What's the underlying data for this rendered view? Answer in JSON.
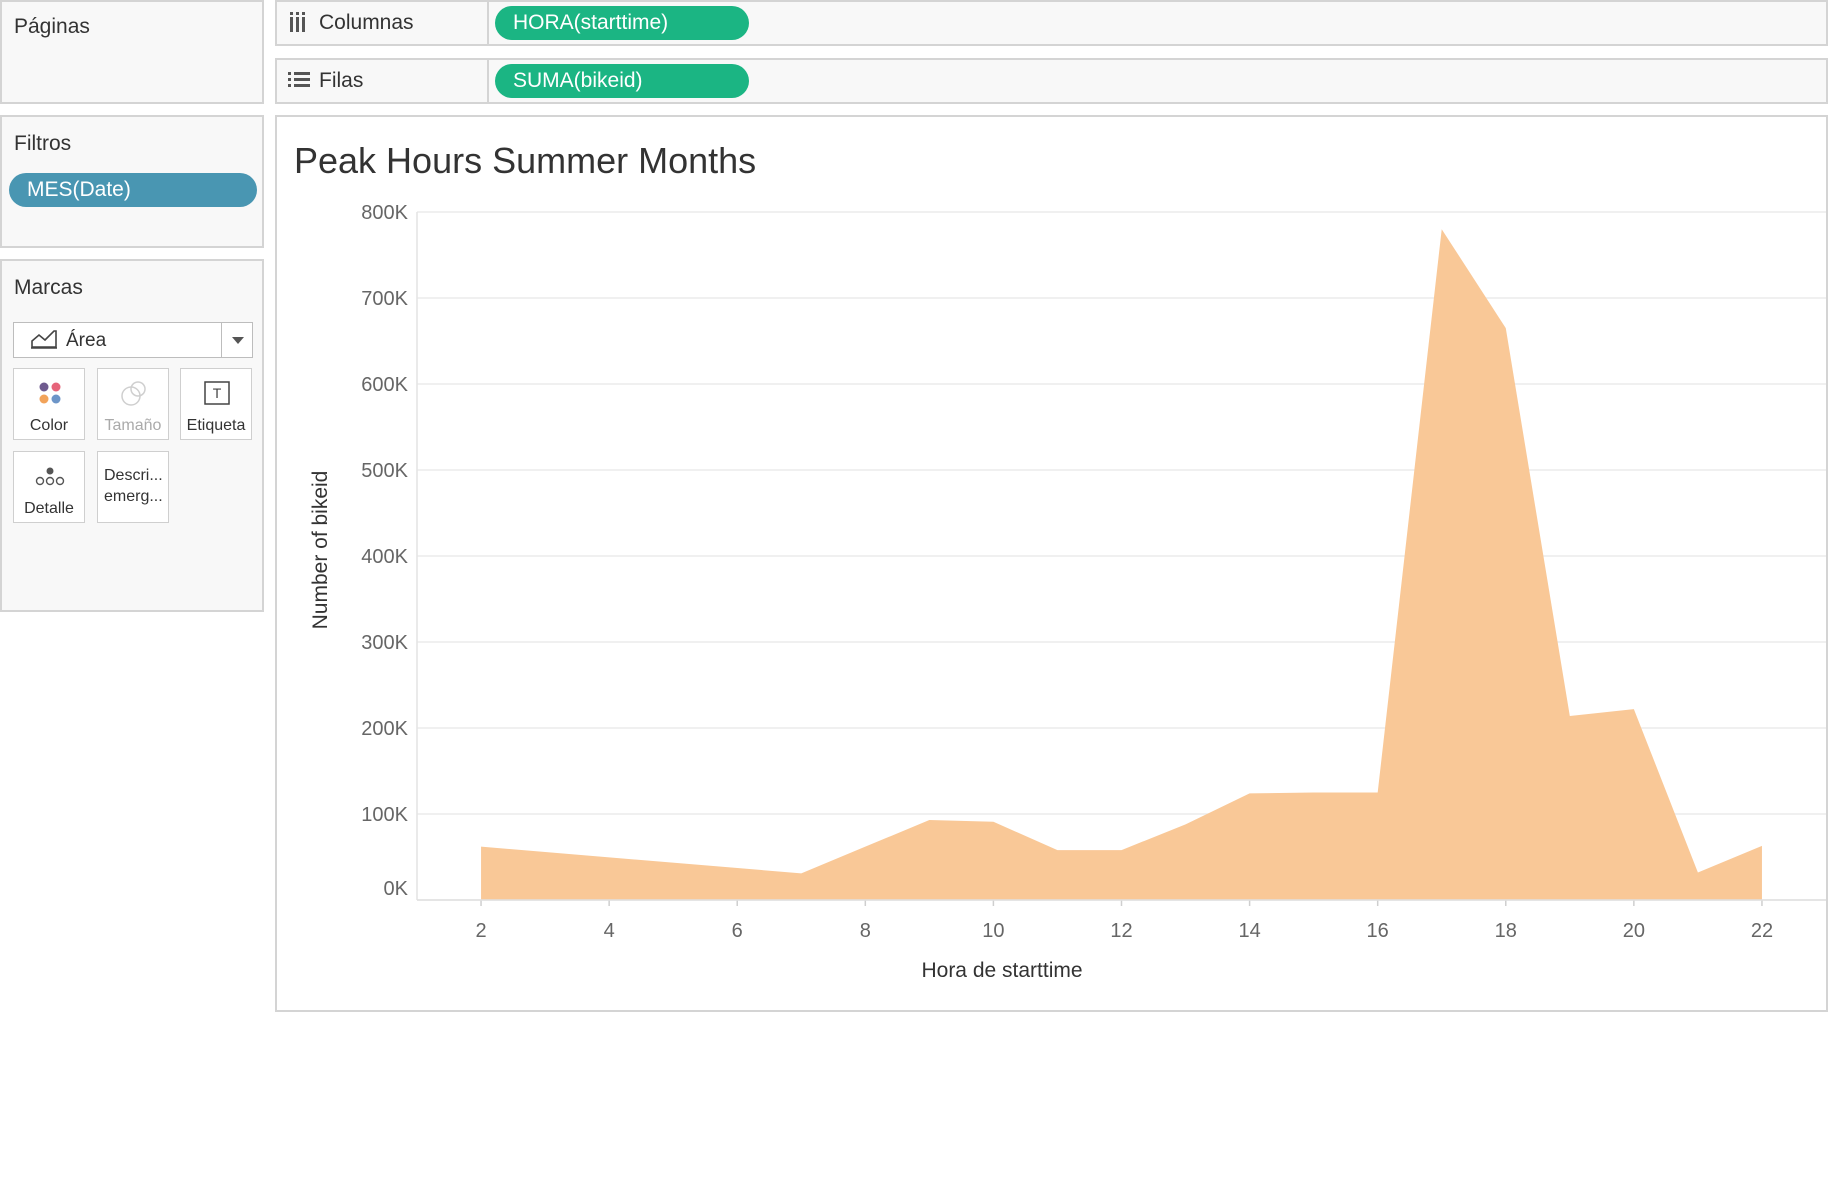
{
  "pages_panel": {
    "title": "Páginas"
  },
  "filters_panel": {
    "title": "Filtros",
    "pills": [
      "MES(Date)"
    ]
  },
  "marks_panel": {
    "title": "Marcas",
    "mark_type": "Área",
    "cards": {
      "color": "Color",
      "size": "Tamaño",
      "label": "Etiqueta",
      "detail": "Detalle",
      "tooltip_line1": "Descri...",
      "tooltip_line2": "emerg..."
    }
  },
  "shelves": {
    "columns": {
      "label": "Columnas",
      "pill": "HORA(starttime)"
    },
    "rows": {
      "label": "Filas",
      "pill": "SUMA(bikeid)"
    }
  },
  "colors": {
    "dimension_pill": "#1bb583",
    "filter_pill": "#4996b2",
    "area_fill": "#f9c897",
    "panel_border": "#d4d4d4"
  },
  "chart_data": {
    "type": "area",
    "title": "Peak Hours Summer Months",
    "xlabel": "Hora de starttime",
    "ylabel": "Number of bikeid",
    "x": [
      2,
      7,
      8,
      9,
      10,
      11,
      12,
      13,
      14,
      15,
      16,
      17,
      18,
      19,
      20,
      21,
      22
    ],
    "values": [
      62000,
      31000,
      62000,
      93000,
      91000,
      58000,
      58000,
      88000,
      124000,
      125000,
      125000,
      780000,
      665000,
      214000,
      222000,
      32000,
      63000
    ],
    "xlim": [
      1,
      23
    ],
    "ylim": [
      0,
      800000
    ],
    "x_ticks": [
      "2",
      "4",
      "6",
      "8",
      "10",
      "12",
      "14",
      "16",
      "18",
      "20",
      "22"
    ],
    "y_ticks": [
      "0K",
      "100K",
      "200K",
      "300K",
      "400K",
      "500K",
      "600K",
      "700K",
      "800K"
    ],
    "grid": true
  }
}
